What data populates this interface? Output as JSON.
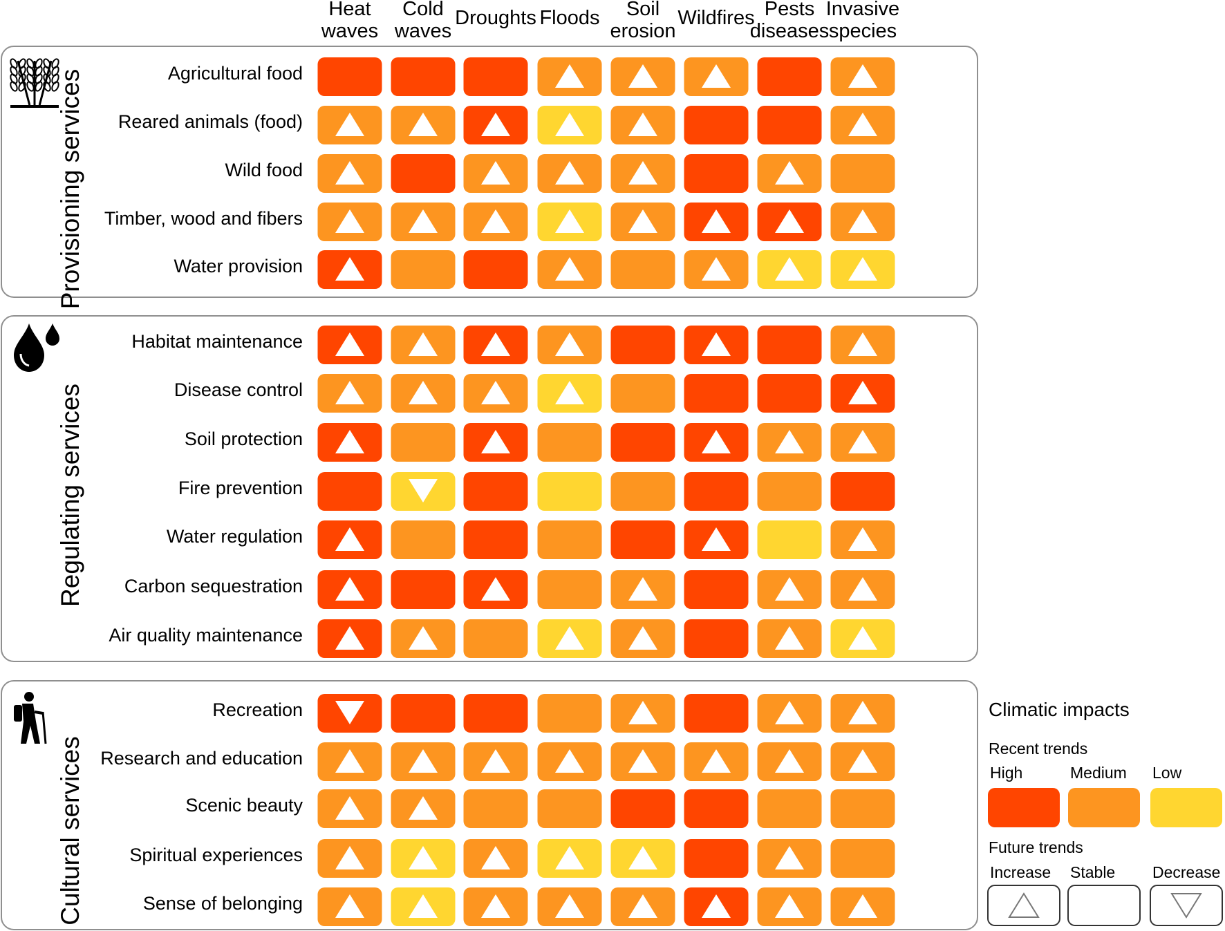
{
  "colors": {
    "high": "#ff4500",
    "medium": "#fd9520",
    "low": "#ffd630",
    "tri": "#ffffff"
  },
  "chart_data": {
    "type": "heatmap",
    "columns": [
      {
        "line1": "Heat",
        "line2": "waves"
      },
      {
        "line1": "Cold",
        "line2": "waves"
      },
      {
        "line1": "",
        "line2": "Droughts"
      },
      {
        "line1": "",
        "line2": "Floods"
      },
      {
        "line1": "Soil",
        "line2": "erosion"
      },
      {
        "line1": "",
        "line2": "Wildfires"
      },
      {
        "line1": "Pests",
        "line2": "diseases"
      },
      {
        "line1": "Invasive",
        "line2": "species"
      }
    ],
    "groups": [
      {
        "name": "Provisioning services",
        "icon": "wheat-icon",
        "rows": [
          {
            "label": "Agricultural food",
            "recent": [
              "high",
              "high",
              "high",
              "medium",
              "medium",
              "medium",
              "high",
              "medium"
            ],
            "future": [
              "stable",
              "stable",
              "stable",
              "increase",
              "increase",
              "increase",
              "stable",
              "increase"
            ]
          },
          {
            "label": "Reared animals (food)",
            "recent": [
              "medium",
              "medium",
              "high",
              "low",
              "medium",
              "high",
              "high",
              "medium"
            ],
            "future": [
              "increase",
              "increase",
              "increase",
              "increase",
              "increase",
              "stable",
              "stable",
              "increase"
            ]
          },
          {
            "label": "Wild food",
            "recent": [
              "medium",
              "high",
              "medium",
              "medium",
              "medium",
              "high",
              "medium",
              "medium"
            ],
            "future": [
              "increase",
              "stable",
              "increase",
              "increase",
              "increase",
              "stable",
              "increase",
              "stable"
            ]
          },
          {
            "label": "Timber, wood and fibers",
            "recent": [
              "medium",
              "medium",
              "medium",
              "low",
              "medium",
              "high",
              "high",
              "medium"
            ],
            "future": [
              "increase",
              "increase",
              "increase",
              "increase",
              "increase",
              "increase",
              "increase",
              "increase"
            ]
          },
          {
            "label": "Water provision",
            "recent": [
              "high",
              "medium",
              "high",
              "medium",
              "medium",
              "medium",
              "low",
              "low"
            ],
            "future": [
              "increase",
              "stable",
              "stable",
              "increase",
              "stable",
              "increase",
              "increase",
              "increase"
            ]
          }
        ]
      },
      {
        "name": "Regulating services",
        "icon": "water-drops-icon",
        "rows": [
          {
            "label": "Habitat maintenance",
            "recent": [
              "high",
              "medium",
              "high",
              "medium",
              "high",
              "high",
              "high",
              "medium"
            ],
            "future": [
              "increase",
              "increase",
              "increase",
              "increase",
              "stable",
              "increase",
              "stable",
              "increase"
            ]
          },
          {
            "label": "Disease control",
            "recent": [
              "medium",
              "medium",
              "medium",
              "low",
              "medium",
              "high",
              "high",
              "high"
            ],
            "future": [
              "increase",
              "increase",
              "increase",
              "increase",
              "stable",
              "stable",
              "stable",
              "increase"
            ]
          },
          {
            "label": "Soil protection",
            "recent": [
              "high",
              "medium",
              "high",
              "medium",
              "high",
              "high",
              "medium",
              "medium"
            ],
            "future": [
              "increase",
              "stable",
              "increase",
              "stable",
              "stable",
              "increase",
              "increase",
              "increase"
            ]
          },
          {
            "label": "Fire prevention",
            "recent": [
              "high",
              "low",
              "high",
              "low",
              "medium",
              "high",
              "medium",
              "high"
            ],
            "future": [
              "stable",
              "decrease",
              "stable",
              "stable",
              "stable",
              "stable",
              "stable",
              "stable"
            ]
          },
          {
            "label": "Water regulation",
            "recent": [
              "high",
              "medium",
              "high",
              "medium",
              "high",
              "high",
              "low",
              "medium"
            ],
            "future": [
              "increase",
              "stable",
              "stable",
              "stable",
              "stable",
              "increase",
              "stable",
              "increase"
            ]
          },
          {
            "label": "Carbon sequestration",
            "recent": [
              "high",
              "high",
              "high",
              "medium",
              "medium",
              "high",
              "medium",
              "medium"
            ],
            "future": [
              "increase",
              "stable",
              "increase",
              "stable",
              "increase",
              "stable",
              "increase",
              "increase"
            ]
          },
          {
            "label": "Air quality maintenance",
            "recent": [
              "high",
              "medium",
              "medium",
              "low",
              "medium",
              "high",
              "medium",
              "low"
            ],
            "future": [
              "increase",
              "increase",
              "stable",
              "increase",
              "increase",
              "stable",
              "increase",
              "increase"
            ]
          }
        ]
      },
      {
        "name": "Cultural services",
        "icon": "hiker-icon",
        "rows": [
          {
            "label": "Recreation",
            "recent": [
              "high",
              "high",
              "high",
              "medium",
              "medium",
              "high",
              "medium",
              "medium"
            ],
            "future": [
              "decrease",
              "stable",
              "stable",
              "stable",
              "increase",
              "stable",
              "increase",
              "increase"
            ]
          },
          {
            "label": "Research and education",
            "recent": [
              "medium",
              "medium",
              "medium",
              "medium",
              "medium",
              "medium",
              "medium",
              "medium"
            ],
            "future": [
              "increase",
              "increase",
              "increase",
              "increase",
              "increase",
              "increase",
              "increase",
              "increase"
            ]
          },
          {
            "label": "Scenic beauty",
            "recent": [
              "medium",
              "medium",
              "medium",
              "medium",
              "high",
              "high",
              "medium",
              "medium"
            ],
            "future": [
              "increase",
              "increase",
              "stable",
              "stable",
              "stable",
              "stable",
              "stable",
              "stable"
            ]
          },
          {
            "label": "Spiritual experiences",
            "recent": [
              "medium",
              "low",
              "medium",
              "low",
              "low",
              "high",
              "medium",
              "medium"
            ],
            "future": [
              "increase",
              "increase",
              "increase",
              "increase",
              "increase",
              "stable",
              "increase",
              "stable"
            ]
          },
          {
            "label": "Sense of belonging",
            "recent": [
              "medium",
              "low",
              "medium",
              "medium",
              "medium",
              "high",
              "medium",
              "medium"
            ],
            "future": [
              "increase",
              "increase",
              "increase",
              "increase",
              "increase",
              "increase",
              "increase",
              "increase"
            ]
          }
        ]
      }
    ]
  },
  "legend": {
    "title": "Climatic impacts",
    "recent_title": "Recent trends",
    "recent": [
      {
        "label": "High",
        "level": "high"
      },
      {
        "label": "Medium",
        "level": "medium"
      },
      {
        "label": "Low",
        "level": "low"
      }
    ],
    "future_title": "Future trends",
    "future": [
      {
        "label": "Increase",
        "trend": "increase"
      },
      {
        "label": "Stable",
        "trend": "stable"
      },
      {
        "label": "Decrease",
        "trend": "decrease"
      }
    ]
  }
}
